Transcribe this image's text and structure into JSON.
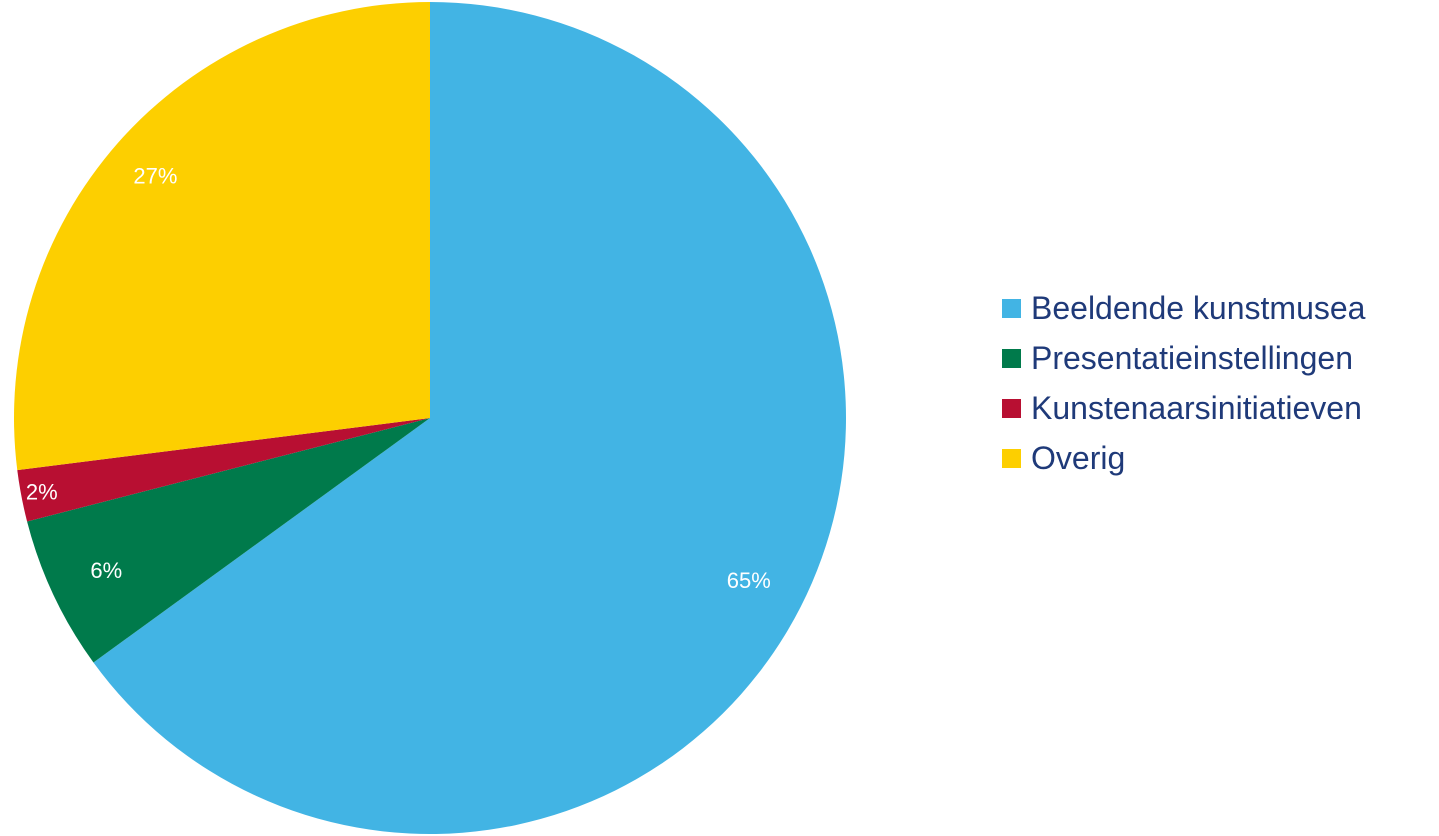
{
  "chart_data": {
    "type": "pie",
    "title": "",
    "start_angle": "12 o'clock",
    "direction": "clockwise",
    "legend_position": "right",
    "label_color": "#ffffff",
    "legend_text_color": "#1f3a79",
    "slices": [
      {
        "label": "Beeldende kunstmusea",
        "value": 65,
        "value_label": "65%",
        "color": "#42b4e4"
      },
      {
        "label": "Presentatieinstellingen",
        "value": 6,
        "value_label": "6%",
        "color": "#007a4b"
      },
      {
        "label": "Kunstenaarsinitiatieven",
        "value": 2,
        "value_label": "2%",
        "color": "#b80f32"
      },
      {
        "label": "Overig",
        "value": 27,
        "value_label": "27%",
        "color": "#fdcf00"
      }
    ]
  }
}
